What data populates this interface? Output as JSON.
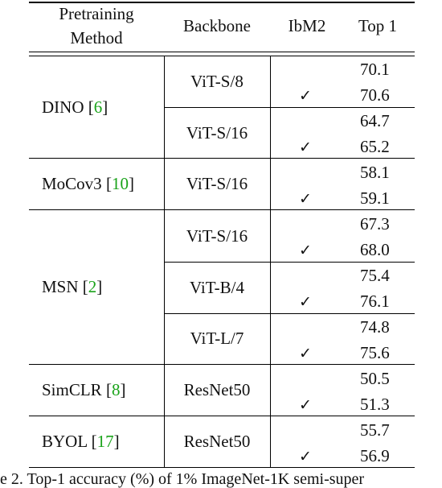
{
  "header": {
    "method_line1": "Pretraining",
    "method_line2": "Method",
    "backbone": "Backbone",
    "ibm2": "IbM2",
    "top1": "Top 1"
  },
  "check_mark": "✓",
  "groups": [
    {
      "name": "DINO",
      "cite": "6"
    },
    {
      "name": "MoCov3",
      "cite": "10"
    },
    {
      "name": "MSN",
      "cite": "2"
    },
    {
      "name": "SimCLR",
      "cite": "8"
    },
    {
      "name": "BYOL",
      "cite": "17"
    }
  ],
  "backbones": [
    "ViT-S/8",
    "ViT-S/16",
    "ViT-S/16",
    "ViT-S/16",
    "ViT-B/4",
    "ViT-L/7",
    "ResNet50",
    "ResNet50"
  ],
  "top1": [
    "70.1",
    "70.6",
    "64.7",
    "65.2",
    "58.1",
    "59.1",
    "67.3",
    "68.0",
    "75.4",
    "76.1",
    "74.8",
    "75.6",
    "50.5",
    "51.3",
    "55.7",
    "56.9"
  ],
  "caption": "e 2. Top-1 accuracy (%) of 1% ImageNet-1K semi-super"
}
